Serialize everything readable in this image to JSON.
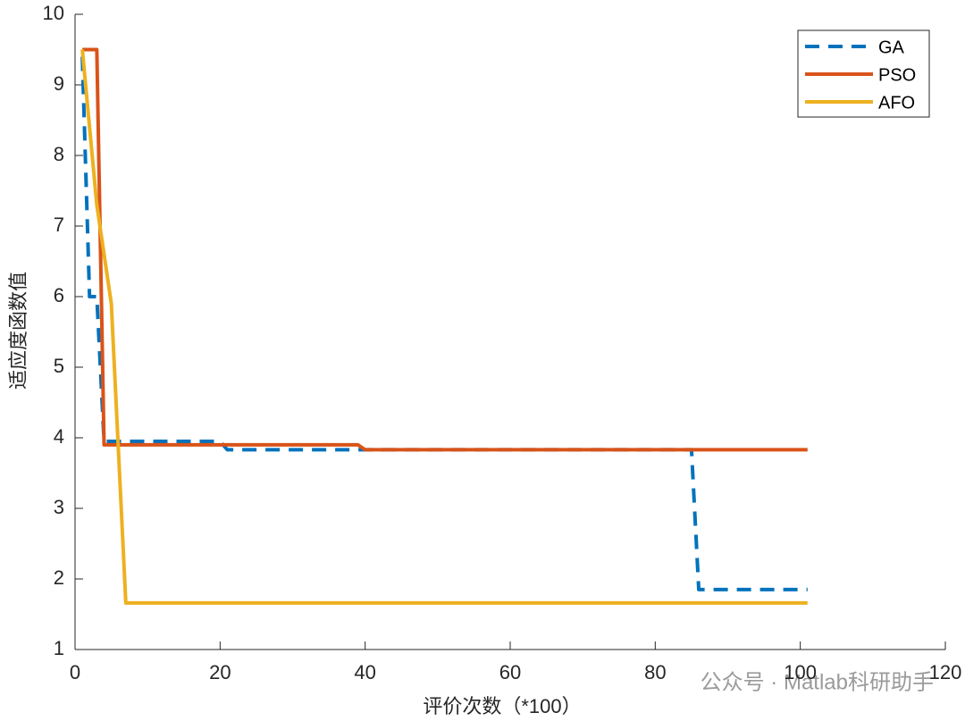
{
  "chart_data": {
    "type": "line",
    "xlabel": "评价次数（*100）",
    "ylabel": "适应度函数值",
    "watermark": "公众号 · Matlab科研助手",
    "xlim": [
      0,
      120
    ],
    "xticks": [
      0,
      20,
      40,
      60,
      80,
      100,
      120
    ],
    "ylim": [
      1,
      10
    ],
    "yticks": [
      1,
      2,
      3,
      4,
      5,
      6,
      7,
      8,
      9,
      10
    ],
    "legend": "top-right",
    "series": [
      {
        "name": "GA",
        "color": "#0072bd",
        "dashed": true,
        "x": [
          1,
          2,
          3,
          4,
          20,
          21,
          85,
          86,
          101
        ],
        "values": [
          9.4,
          6.0,
          6.0,
          3.95,
          3.95,
          3.83,
          3.83,
          1.85,
          1.85
        ]
      },
      {
        "name": "PSO",
        "color": "#d95319",
        "dashed": false,
        "x": [
          1,
          3,
          4,
          39,
          40,
          101
        ],
        "values": [
          9.5,
          9.5,
          3.9,
          3.9,
          3.83,
          3.83
        ]
      },
      {
        "name": "AFO",
        "color": "#edb120",
        "dashed": false,
        "x": [
          1,
          3,
          5,
          7,
          101
        ],
        "values": [
          9.5,
          7.3,
          5.9,
          1.66,
          1.66
        ]
      }
    ]
  }
}
